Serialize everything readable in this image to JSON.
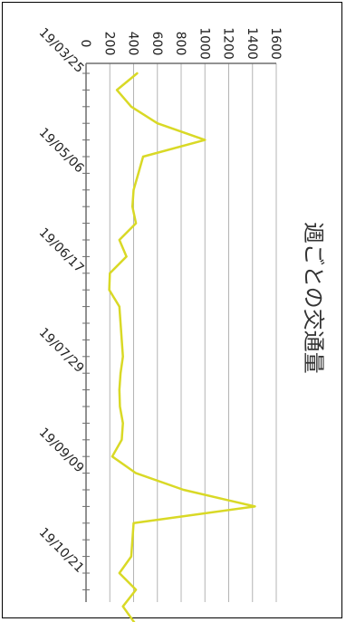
{
  "chart_data": {
    "type": "line",
    "title": "週ごとの交通量",
    "xlabel": "",
    "ylabel": "",
    "ylim": [
      0,
      1600
    ],
    "y_ticks": [
      "0",
      "200",
      "400",
      "600",
      "800",
      "1000",
      "1200",
      "1400",
      "1600"
    ],
    "x_tick_labels": [
      "19/03/25",
      "19/05/06",
      "19/06/17",
      "19/07/29",
      "19/09/09",
      "19/10/21"
    ],
    "x_tick_label_week_index": [
      0,
      6,
      12,
      18,
      24,
      30
    ],
    "grid": true,
    "series": [
      {
        "values": [
          430,
          260,
          380,
          600,
          1000,
          480,
          440,
          400,
          390,
          420,
          280,
          340,
          200,
          195,
          280,
          290,
          300,
          310,
          290,
          280,
          285,
          310,
          300,
          220,
          420,
          820,
          1420,
          400,
          390,
          380,
          280,
          420,
          310,
          410,
          180
        ]
      }
    ]
  },
  "colors": {
    "line": "#d9d926",
    "grid": "#b4b4b4",
    "axis": "#6e6e6e"
  }
}
